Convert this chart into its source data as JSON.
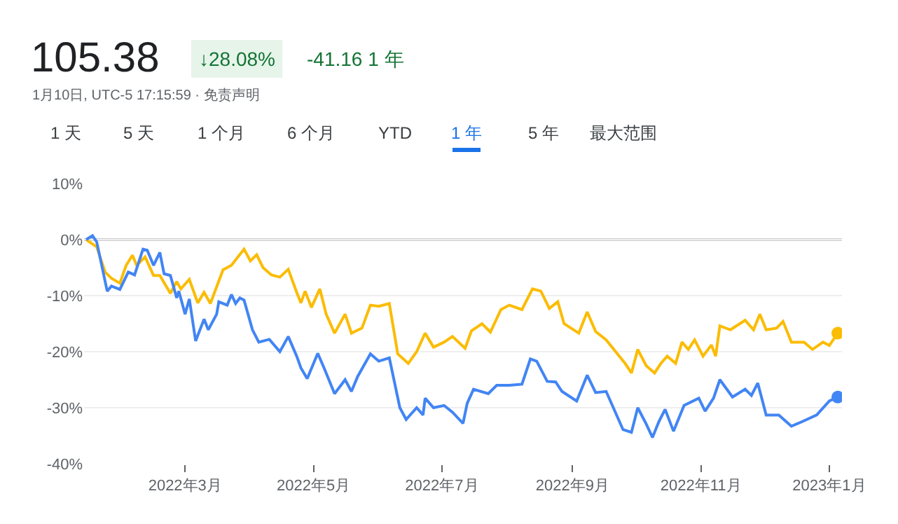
{
  "chart_data": {
    "type": "line",
    "title": "105.38",
    "subtitle": "1月10日, UTC-5 17:15:59 · 免责声明",
    "annotations": [
      "↓28.08%",
      "-41.16 1 年",
      "1 天",
      "5 天",
      "1 个月",
      "6 个月",
      "YTD",
      "1 年",
      "5 年",
      "最大范围"
    ],
    "series": [
      {
        "color": "#fbbc04",
        "x": [
          "2022-01-13",
          "2022-01-18",
          "2022-01-22",
          "2022-01-25",
          "2022-01-29",
          "2022-02-01",
          "2022-02-04",
          "2022-02-06",
          "2022-02-10",
          "2022-02-14",
          "2022-02-17",
          "2022-02-22",
          "2022-02-25",
          "2022-02-27",
          "2022-03-03",
          "2022-03-07",
          "2022-03-10",
          "2022-03-13",
          "2022-03-19",
          "2022-03-23",
          "2022-03-29",
          "2022-04-01",
          "2022-04-04",
          "2022-04-07",
          "2022-04-11",
          "2022-04-15",
          "2022-04-19",
          "2022-04-23",
          "2022-04-25",
          "2022-04-27",
          "2022-04-30",
          "2022-05-04",
          "2022-05-07",
          "2022-05-11",
          "2022-05-16",
          "2022-05-19",
          "2022-05-24",
          "2022-05-28",
          "2022-06-01",
          "2022-06-06",
          "2022-06-10",
          "2022-06-15",
          "2022-06-19",
          "2022-06-23",
          "2022-06-27",
          "2022-07-02",
          "2022-07-06",
          "2022-07-12",
          "2022-07-15",
          "2022-07-20",
          "2022-07-24",
          "2022-07-29",
          "2022-08-02",
          "2022-08-08",
          "2022-08-13",
          "2022-08-17",
          "2022-08-21",
          "2022-08-25",
          "2022-08-28",
          "2022-09-04",
          "2022-09-08",
          "2022-09-12",
          "2022-09-17",
          "2022-09-26",
          "2022-09-29",
          "2022-10-02",
          "2022-10-06",
          "2022-10-10",
          "2022-10-13",
          "2022-10-16",
          "2022-10-20",
          "2022-10-23",
          "2022-10-26",
          "2022-10-29",
          "2022-11-02",
          "2022-11-06",
          "2022-11-08",
          "2022-11-10",
          "2022-11-15",
          "2022-11-22",
          "2022-11-26",
          "2022-11-29",
          "2022-12-02",
          "2022-12-07",
          "2022-12-10",
          "2022-12-14",
          "2022-12-20",
          "2022-12-24",
          "2022-12-29",
          "2023-01-01",
          "2023-01-05"
        ],
        "values": [
          0,
          -1.3,
          -5.8,
          -6.9,
          -7.8,
          -4.6,
          -2.8,
          -4.6,
          -3.1,
          -6.4,
          -6.4,
          -9.6,
          -7.5,
          -8.8,
          -7.1,
          -11.3,
          -9.4,
          -11.4,
          -5.4,
          -4.6,
          -1.7,
          -3.8,
          -2.7,
          -5,
          -6.3,
          -6.7,
          -5.3,
          -9.4,
          -11.3,
          -9.2,
          -12.1,
          -8.8,
          -13.3,
          -16.7,
          -13.3,
          -16.7,
          -15.8,
          -11.7,
          -11.9,
          -11.4,
          -20.4,
          -22.1,
          -20,
          -16.7,
          -19.2,
          -18.3,
          -17.3,
          -19.4,
          -16.3,
          -15,
          -16.5,
          -12.5,
          -11.7,
          -12.5,
          -8.8,
          -9.2,
          -12.3,
          -11.1,
          -15,
          -16.7,
          -12.9,
          -16.4,
          -17.9,
          -22.1,
          -23.8,
          -19.6,
          -22.5,
          -23.8,
          -22.1,
          -20.8,
          -22.1,
          -18.3,
          -19.6,
          -17.9,
          -20.8,
          -18.8,
          -20.8,
          -15.4,
          -16.1,
          -14.4,
          -16.1,
          -13.3,
          -16.1,
          -15.8,
          -14.6,
          -18.3,
          -18.3,
          -19.6,
          -18.3,
          -18.9,
          -16.7
        ]
      },
      {
        "color": "#4285f4",
        "x": [
          "2022-01-13",
          "2022-01-16",
          "2022-01-18",
          "2022-01-23",
          "2022-01-25",
          "2022-01-29",
          "2022-02-02",
          "2022-02-05",
          "2022-02-09",
          "2022-02-11",
          "2022-02-14",
          "2022-02-17",
          "2022-02-19",
          "2022-02-22",
          "2022-02-25",
          "2022-02-26",
          "2022-03-01",
          "2022-03-03",
          "2022-03-06",
          "2022-03-10",
          "2022-03-12",
          "2022-03-16",
          "2022-03-17",
          "2022-03-21",
          "2022-03-23",
          "2022-03-25",
          "2022-03-27",
          "2022-03-29",
          "2022-04-02",
          "2022-04-05",
          "2022-04-10",
          "2022-04-15",
          "2022-04-19",
          "2022-04-23",
          "2022-04-25",
          "2022-04-28",
          "2022-05-03",
          "2022-05-06",
          "2022-05-11",
          "2022-05-16",
          "2022-05-19",
          "2022-05-22",
          "2022-05-28",
          "2022-06-01",
          "2022-06-06",
          "2022-06-11",
          "2022-06-14",
          "2022-06-19",
          "2022-06-22",
          "2022-06-23",
          "2022-06-27",
          "2022-07-02",
          "2022-07-06",
          "2022-07-11",
          "2022-07-13",
          "2022-07-16",
          "2022-07-23",
          "2022-07-27",
          "2022-08-02",
          "2022-08-08",
          "2022-08-12",
          "2022-08-15",
          "2022-08-20",
          "2022-08-24",
          "2022-08-27",
          "2022-09-03",
          "2022-09-08",
          "2022-09-12",
          "2022-09-17",
          "2022-09-25",
          "2022-09-29",
          "2022-10-02",
          "2022-10-06",
          "2022-10-09",
          "2022-10-12",
          "2022-10-15",
          "2022-10-19",
          "2022-10-24",
          "2022-10-31",
          "2022-11-03",
          "2022-11-07",
          "2022-11-10",
          "2022-11-16",
          "2022-11-22",
          "2022-11-25",
          "2022-11-28",
          "2022-12-02",
          "2022-12-08",
          "2022-12-14",
          "2022-12-19",
          "2022-12-26",
          "2023-01-01",
          "2023-01-05"
        ],
        "values": [
          0,
          0.7,
          -0.4,
          -9.2,
          -8.3,
          -8.9,
          -5.8,
          -6.3,
          -1.7,
          -1.9,
          -4.6,
          -2.3,
          -6.1,
          -6.4,
          -10.4,
          -9.2,
          -13.3,
          -10.6,
          -18.1,
          -14.2,
          -16.1,
          -13.3,
          -11.1,
          -11.7,
          -9.8,
          -11.4,
          -10.4,
          -10.8,
          -16.1,
          -18.3,
          -17.8,
          -20,
          -17.3,
          -20.8,
          -22.9,
          -24.8,
          -20.3,
          -22.9,
          -27.5,
          -25,
          -27.1,
          -24.4,
          -20.4,
          -21.7,
          -21.1,
          -30,
          -32.1,
          -30,
          -31.3,
          -28.3,
          -30,
          -29.6,
          -30.8,
          -32.8,
          -29.2,
          -26.7,
          -27.5,
          -26,
          -26,
          -25.8,
          -21.3,
          -21.7,
          -25.3,
          -25.4,
          -27.1,
          -28.8,
          -24.2,
          -27.3,
          -27.1,
          -33.9,
          -34.4,
          -30,
          -32.9,
          -35.3,
          -32.5,
          -30.3,
          -34.2,
          -29.6,
          -28.3,
          -30.6,
          -28.3,
          -25,
          -28.1,
          -26.7,
          -27.8,
          -25.6,
          -31.3,
          -31.3,
          -33.3,
          -32.5,
          -31.3,
          -28.8,
          -28.1
        ]
      }
    ],
    "xlim": [
      "2022-01-12",
      "2023-01-07"
    ],
    "xticks": [
      {
        "value": "2022-03-01",
        "label": "2022年3月"
      },
      {
        "value": "2022-05-01",
        "label": "2022年5月"
      },
      {
        "value": "2022-07-01",
        "label": "2022年7月"
      },
      {
        "value": "2022-09-01",
        "label": "2022年9月"
      },
      {
        "value": "2022-11-01",
        "label": "2022年11月"
      },
      {
        "value": "2023-01-01",
        "label": "2023年1月"
      }
    ],
    "ylim": [
      -40,
      10
    ],
    "yticks": [
      {
        "value": 10,
        "label": "10%"
      },
      {
        "value": 0,
        "label": "0%"
      },
      {
        "value": -10,
        "label": "-10%"
      },
      {
        "value": -20,
        "label": "-20%"
      },
      {
        "value": -30,
        "label": "-30%"
      },
      {
        "value": -40,
        "label": "-40%"
      }
    ],
    "ref_lines": [
      {
        "axis": "y",
        "value": 0,
        "color": "#9e9e9e"
      }
    ],
    "grid": "y",
    "line_style": "solid",
    "marker": "none"
  }
}
